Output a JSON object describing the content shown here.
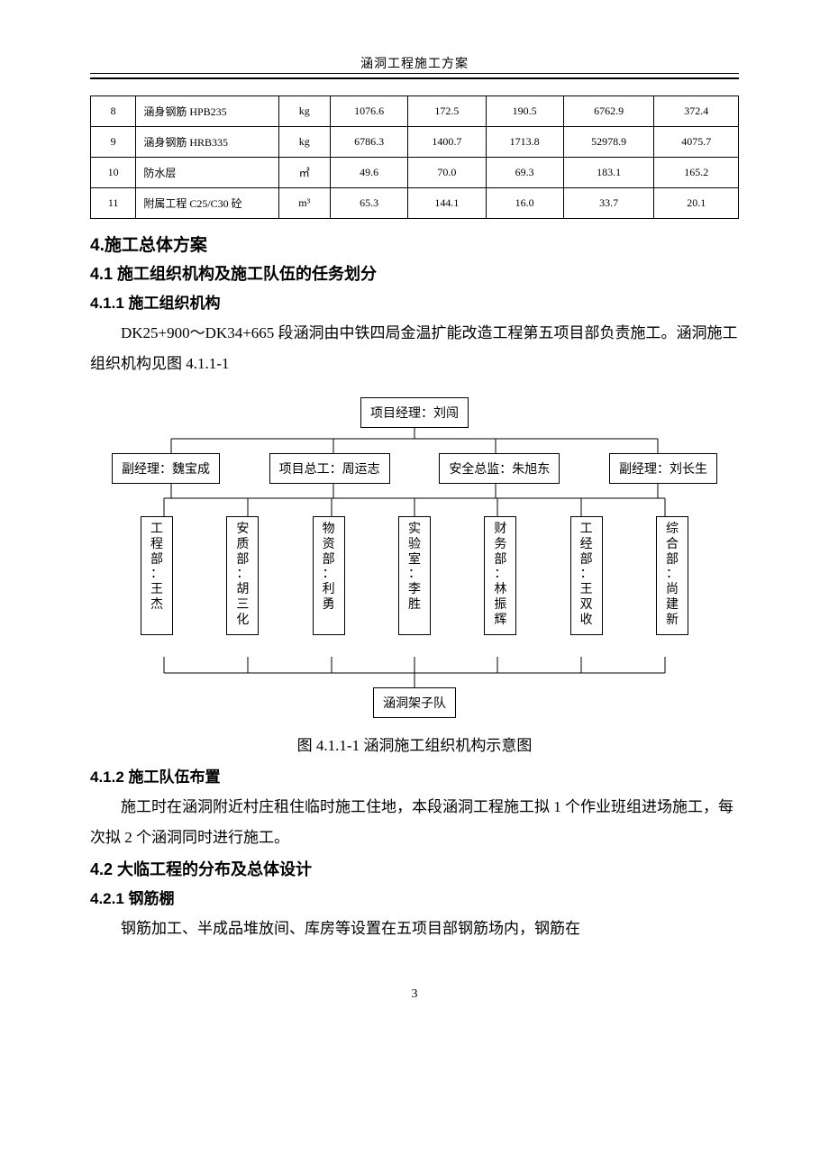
{
  "header": {
    "title": "涵洞工程施工方案"
  },
  "table": {
    "rows": [
      {
        "no": "8",
        "name": "涵身钢筋 HPB235",
        "unit": "kg",
        "c1": "1076.6",
        "c2": "172.5",
        "c3": "190.5",
        "c4": "6762.9",
        "c5": "372.4"
      },
      {
        "no": "9",
        "name": "涵身钢筋 HRB335",
        "unit": "kg",
        "c1": "6786.3",
        "c2": "1400.7",
        "c3": "1713.8",
        "c4": "52978.9",
        "c5": "4075.7"
      },
      {
        "no": "10",
        "name": "防水层",
        "unit": "㎡",
        "c1": "49.6",
        "c2": "70.0",
        "c3": "69.3",
        "c4": "183.1",
        "c5": "165.2"
      },
      {
        "no": "11",
        "name": "附属工程 C25/C30 砼",
        "unit": "m³",
        "c1": "65.3",
        "c2": "144.1",
        "c3": "16.0",
        "c4": "33.7",
        "c5": "20.1"
      }
    ],
    "col_widths": [
      "7%",
      "22%",
      "8%",
      "12%",
      "12%",
      "12%",
      "14%",
      "13%"
    ]
  },
  "sections": {
    "s4": "4.施工总体方案",
    "s41": "4.1 施工组织机构及施工队伍的任务划分",
    "s411": "4.1.1 施工组织机构",
    "p411": "DK25+900～DK34+665 段涵洞由中铁四局金温扩能改造工程第五项目部负责施工。涵洞施工组织机构见图 4.1.1-1",
    "fig_caption": "图 4.1.1-1 涵洞施工组织机构示意图",
    "s412": "4.1.2 施工队伍布置",
    "p412": "施工时在涵洞附近村庄租住临时施工住地，本段涵洞工程施工拟 1 个作业班组进场施工，每次拟 2 个涵洞同时进行施工。",
    "s42": "4.2 大临工程的分布及总体设计",
    "s421": "4.2.1 钢筋棚",
    "p421": "钢筋加工、半成品堆放间、库房等设置在五项目部钢筋场内，钢筋在"
  },
  "org": {
    "top": "项目经理：刘闯",
    "level2": [
      "副经理：魏宝成",
      "项目总工：周运志",
      "安全总监：朱旭东",
      "副经理：刘长生"
    ],
    "level3": [
      "工程部：王杰",
      "安质部：胡三化",
      "物资部：利勇",
      "实验室：李胜",
      "财务部：林振辉",
      "工经部：王双收",
      "综合部：尚建新"
    ],
    "bottom": "涵洞架子队",
    "line_color": "#000000"
  },
  "page_number": "3"
}
